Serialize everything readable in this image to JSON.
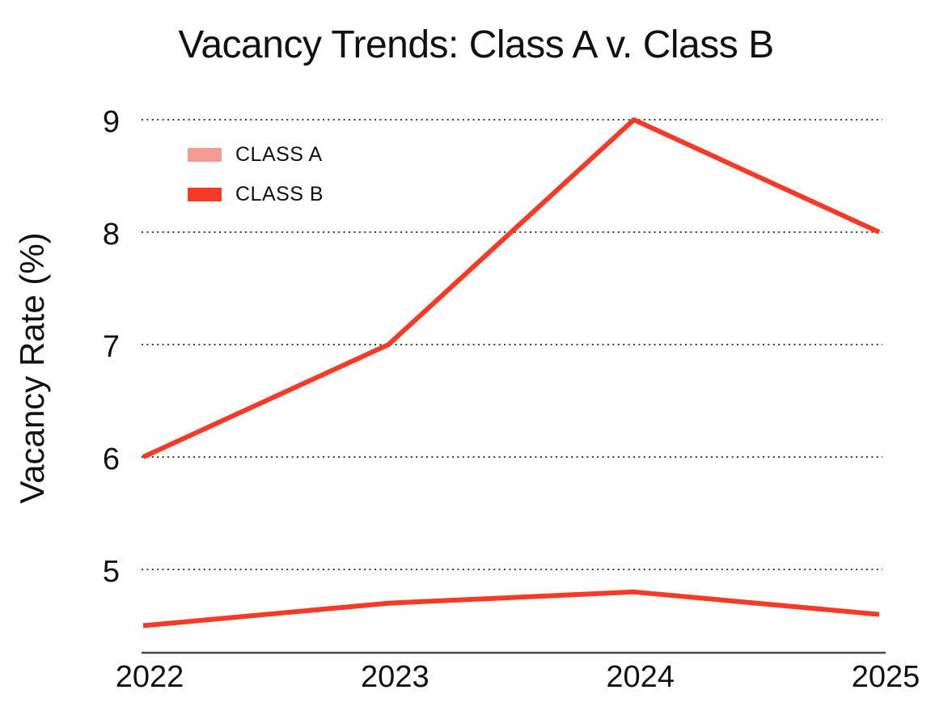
{
  "chart_data": {
    "type": "line",
    "title": "Vacancy Trends: Class A v. Class B",
    "xlabel": "",
    "ylabel": "Vacancy Rate (%)",
    "x": [
      "2022",
      "2023",
      "2024",
      "2025"
    ],
    "series": [
      {
        "name": "CLASS A",
        "values": [
          4.5,
          4.7,
          4.8,
          4.6
        ],
        "line_color": "#F53A28",
        "legend_color": "#F39A93"
      },
      {
        "name": "CLASS B",
        "values": [
          6.0,
          7.0,
          9.0,
          8.0
        ],
        "line_color": "#F53A28",
        "legend_color": "#F53A28"
      }
    ],
    "yticks": [
      5,
      6,
      7,
      8,
      9
    ],
    "ylim": [
      4.3,
      9.1
    ],
    "grid": "horizontal-dotted",
    "legend_position": "upper-left-inside",
    "colors": {
      "line": "#F53A28",
      "grid": "#3B3B3B",
      "axis": "#4A4A4A",
      "text": "#111111",
      "background": "#FFFFFF"
    }
  }
}
